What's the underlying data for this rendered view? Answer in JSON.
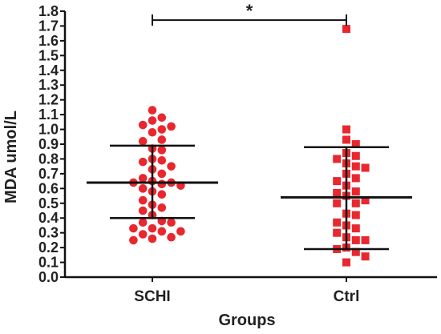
{
  "chart_data": {
    "type": "scatter",
    "title": "",
    "xlabel": "Groups",
    "ylabel": "MDA  umol/L",
    "ylim": [
      0.0,
      1.8
    ],
    "yticks": [
      "0.0",
      "0.1",
      "0.2",
      "0.3",
      "0.4",
      "0.5",
      "0.6",
      "0.7",
      "0.8",
      "0.9",
      "1.0",
      "1.1",
      "1.2",
      "1.3",
      "1.4",
      "1.5",
      "1.6",
      "1.7",
      "1.8"
    ],
    "categories": [
      "SCHI",
      "Ctrl"
    ],
    "marker_color": "#e8272f",
    "series": [
      {
        "category": "SCHI",
        "marker": "circle",
        "values": [
          1.13,
          1.08,
          1.06,
          1.03,
          1.02,
          1.0,
          0.98,
          0.93,
          0.92,
          0.87,
          0.86,
          0.8,
          0.79,
          0.78,
          0.75,
          0.73,
          0.7,
          0.67,
          0.65,
          0.64,
          0.64,
          0.63,
          0.62,
          0.6,
          0.58,
          0.56,
          0.52,
          0.49,
          0.47,
          0.45,
          0.42,
          0.38,
          0.37,
          0.37,
          0.33,
          0.33,
          0.31,
          0.31,
          0.29,
          0.27,
          0.26,
          0.25
        ],
        "mean": 0.64,
        "sd_upper": 0.89,
        "sd_lower": 0.4
      },
      {
        "category": "Ctrl",
        "marker": "square",
        "values": [
          1.68,
          1.0,
          0.93,
          0.9,
          0.84,
          0.82,
          0.8,
          0.77,
          0.75,
          0.74,
          0.7,
          0.67,
          0.65,
          0.62,
          0.58,
          0.57,
          0.55,
          0.52,
          0.5,
          0.5,
          0.43,
          0.42,
          0.37,
          0.35,
          0.33,
          0.3,
          0.27,
          0.25,
          0.25,
          0.2,
          0.19,
          0.17,
          0.14,
          0.1
        ],
        "mean": 0.54,
        "sd_upper": 0.88,
        "sd_lower": 0.19
      }
    ],
    "significance": {
      "label": "*",
      "y": 1.74,
      "between": [
        "SCHI",
        "Ctrl"
      ]
    },
    "grid": false
  }
}
